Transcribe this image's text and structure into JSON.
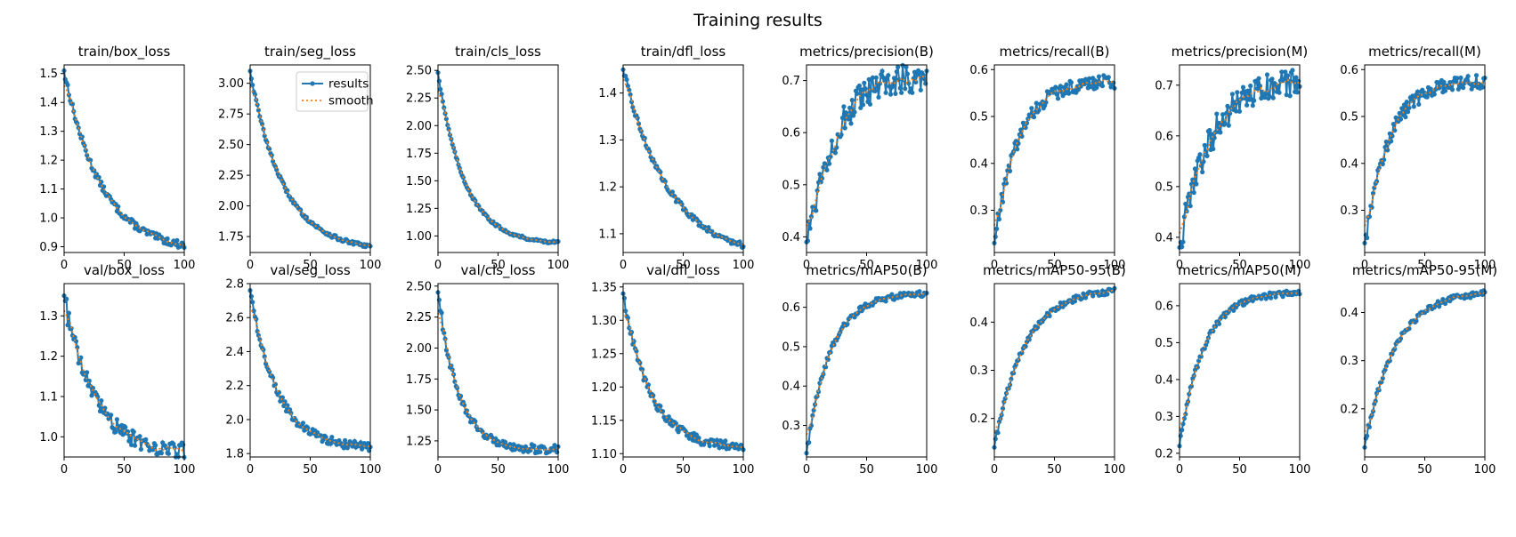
{
  "title": "Training results",
  "legend": {
    "results": "results",
    "smooth": "smooth"
  },
  "colors": {
    "results": "#1f77b4",
    "smooth": "#ff7f0e",
    "frame": "#000000"
  },
  "chart_data": [
    {
      "name": "train/box_loss",
      "type": "line",
      "xlim": [
        0,
        100
      ],
      "ylim": [
        0.88,
        1.53
      ],
      "xticks": [
        0,
        50,
        100
      ],
      "yticks": [
        0.9,
        1.0,
        1.1,
        1.2,
        1.3,
        1.4,
        1.5
      ],
      "start": 1.51,
      "end": 0.905,
      "k": 3.2,
      "initial_drop": 0.17,
      "noise": 0.012
    },
    {
      "name": "train/seg_loss",
      "type": "line",
      "xlim": [
        0,
        100
      ],
      "ylim": [
        1.62,
        3.15
      ],
      "xticks": [
        0,
        50,
        100
      ],
      "yticks": [
        1.75,
        2.0,
        2.25,
        2.5,
        2.75,
        3.0
      ],
      "start": 3.1,
      "end": 1.67,
      "k": 3.6,
      "initial_drop": 0.52,
      "noise": 0.015,
      "legend": true
    },
    {
      "name": "train/cls_loss",
      "type": "line",
      "xlim": [
        0,
        100
      ],
      "ylim": [
        0.85,
        2.55
      ],
      "xticks": [
        0,
        50,
        100
      ],
      "yticks": [
        1.0,
        1.25,
        1.5,
        1.75,
        2.0,
        2.25,
        2.5
      ],
      "start": 2.48,
      "end": 0.94,
      "k": 4.5,
      "initial_drop": 0.6,
      "noise": 0.012
    },
    {
      "name": "train/dfl_loss",
      "type": "line",
      "xlim": [
        0,
        100
      ],
      "ylim": [
        1.06,
        1.46
      ],
      "xticks": [
        0,
        50,
        100
      ],
      "yticks": [
        1.1,
        1.2,
        1.3,
        1.4
      ],
      "start": 1.45,
      "end": 1.075,
      "k": 2.6,
      "initial_drop": 0.13,
      "noise": 0.006
    },
    {
      "name": "metrics/precision(B)",
      "type": "line",
      "xlim": [
        0,
        100
      ],
      "ylim": [
        0.37,
        0.73
      ],
      "xticks": [
        0,
        50,
        100
      ],
      "yticks": [
        0.4,
        0.5,
        0.6,
        0.7
      ],
      "start": 0.39,
      "end": 0.71,
      "k": 4.0,
      "initial_drop": 0,
      "noise": 0.03
    },
    {
      "name": "metrics/recall(B)",
      "type": "line",
      "xlim": [
        0,
        100
      ],
      "ylim": [
        0.21,
        0.61
      ],
      "xticks": [
        0,
        50,
        100
      ],
      "yticks": [
        0.3,
        0.4,
        0.5,
        0.6
      ],
      "start": 0.23,
      "end": 0.575,
      "k": 5.0,
      "initial_drop": 0,
      "noise": 0.015
    },
    {
      "name": "metrics/precision(M)",
      "type": "line",
      "xlim": [
        0,
        100
      ],
      "ylim": [
        0.37,
        0.74
      ],
      "xticks": [
        0,
        50,
        100
      ],
      "yticks": [
        0.4,
        0.5,
        0.6,
        0.7
      ],
      "start": 0.38,
      "end": 0.705,
      "k": 4.0,
      "initial_drop": 0,
      "noise": 0.03
    },
    {
      "name": "metrics/recall(M)",
      "type": "line",
      "xlim": [
        0,
        100
      ],
      "ylim": [
        0.21,
        0.61
      ],
      "xticks": [
        0,
        50,
        100
      ],
      "yticks": [
        0.3,
        0.4,
        0.5,
        0.6
      ],
      "start": 0.23,
      "end": 0.575,
      "k": 5.0,
      "initial_drop": 0,
      "noise": 0.015
    },
    {
      "name": "val/box_loss",
      "type": "line",
      "xlim": [
        0,
        100
      ],
      "ylim": [
        0.95,
        1.38
      ],
      "xticks": [
        0,
        50,
        100
      ],
      "yticks": [
        1.0,
        1.1,
        1.2,
        1.3
      ],
      "start": 1.35,
      "end": 0.965,
      "k": 4.0,
      "initial_drop": 0,
      "noise": 0.02
    },
    {
      "name": "val/seg_loss",
      "type": "line",
      "xlim": [
        0,
        100
      ],
      "ylim": [
        1.78,
        2.8
      ],
      "xticks": [
        0,
        50,
        100
      ],
      "yticks": [
        1.8,
        2.0,
        2.2,
        2.4,
        2.6,
        2.8
      ],
      "start": 2.76,
      "end": 1.84,
      "k": 4.5,
      "initial_drop": 0,
      "noise": 0.025
    },
    {
      "name": "val/cls_loss",
      "type": "line",
      "xlim": [
        0,
        100
      ],
      "ylim": [
        1.12,
        2.52
      ],
      "xticks": [
        0,
        50,
        100
      ],
      "yticks": [
        1.25,
        1.5,
        1.75,
        2.0,
        2.25,
        2.5
      ],
      "start": 2.45,
      "end": 1.18,
      "k": 6.0,
      "initial_drop": 0,
      "noise": 0.035
    },
    {
      "name": "val/dfl_loss",
      "type": "line",
      "xlim": [
        0,
        100
      ],
      "ylim": [
        1.095,
        1.355
      ],
      "xticks": [
        0,
        50,
        100
      ],
      "yticks": [
        1.1,
        1.15,
        1.2,
        1.25,
        1.3,
        1.35
      ],
      "start": 1.34,
      "end": 1.11,
      "k": 4.5,
      "initial_drop": 0,
      "noise": 0.007
    },
    {
      "name": "metrics/mAP50(B)",
      "type": "line",
      "xlim": [
        0,
        100
      ],
      "ylim": [
        0.22,
        0.66
      ],
      "xticks": [
        0,
        50,
        100
      ],
      "yticks": [
        0.3,
        0.4,
        0.5,
        0.6
      ],
      "start": 0.23,
      "end": 0.635,
      "k": 5.0,
      "initial_drop": 0,
      "noise": 0.008
    },
    {
      "name": "metrics/mAP50-95(B)",
      "type": "line",
      "xlim": [
        0,
        100
      ],
      "ylim": [
        0.12,
        0.48
      ],
      "xticks": [
        0,
        50,
        100
      ],
      "yticks": [
        0.2,
        0.3,
        0.4
      ],
      "start": 0.14,
      "end": 0.465,
      "k": 4.0,
      "initial_drop": 0,
      "noise": 0.006
    },
    {
      "name": "metrics/mAP50(M)",
      "type": "line",
      "xlim": [
        0,
        100
      ],
      "ylim": [
        0.19,
        0.66
      ],
      "xticks": [
        0,
        50,
        100
      ],
      "yticks": [
        0.2,
        0.3,
        0.4,
        0.5,
        0.6
      ],
      "start": 0.22,
      "end": 0.635,
      "k": 5.0,
      "initial_drop": 0,
      "noise": 0.008
    },
    {
      "name": "metrics/mAP50-95(M)",
      "type": "line",
      "xlim": [
        0,
        100
      ],
      "ylim": [
        0.1,
        0.46
      ],
      "xticks": [
        0,
        50,
        100
      ],
      "yticks": [
        0.2,
        0.3,
        0.4
      ],
      "start": 0.12,
      "end": 0.44,
      "k": 4.0,
      "initial_drop": 0,
      "noise": 0.006
    }
  ]
}
